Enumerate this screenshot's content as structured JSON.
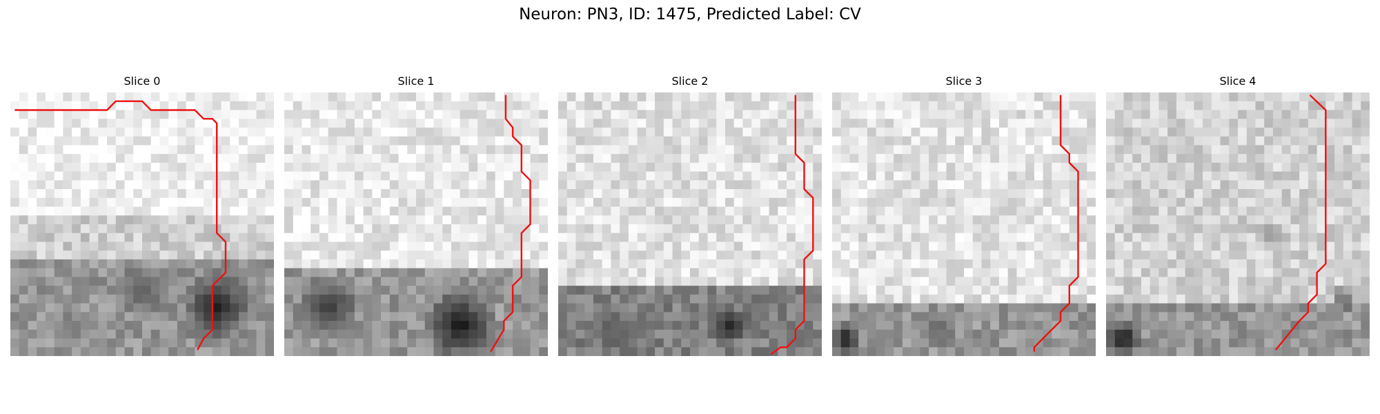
{
  "figure": {
    "title": "Neuron: PN3, ID: 1475, Predicted Label: CV",
    "trace_color": "#ee1111",
    "panels": [
      {
        "title": "Slice 0",
        "bands": [
          {
            "r0": 0,
            "r1": 14,
            "v": 238
          },
          {
            "r0": 14,
            "r1": 19,
            "v": 205
          },
          {
            "r0": 19,
            "r1": 30,
            "v": 150
          }
        ],
        "dark_spots": [
          {
            "r": 24.5,
            "c": 23.5,
            "rad": 4.5,
            "v": 30
          },
          {
            "r": 22.5,
            "c": 15,
            "rad": 3.5,
            "v": 90
          },
          {
            "r": 27,
            "c": 7,
            "rad": 2.5,
            "v": 120
          }
        ],
        "trace": [
          [
            0.5,
            2
          ],
          [
            11,
            2
          ],
          [
            12,
            1
          ],
          [
            15,
            1
          ],
          [
            16,
            2
          ],
          [
            21,
            2
          ],
          [
            22,
            3
          ],
          [
            23,
            3
          ],
          [
            23.5,
            3.5
          ],
          [
            23.5,
            16
          ],
          [
            24.5,
            17
          ],
          [
            24.5,
            20.5
          ],
          [
            23.5,
            21.5
          ],
          [
            23,
            22
          ],
          [
            23,
            27
          ],
          [
            22,
            28
          ],
          [
            21.3,
            29.3
          ]
        ]
      },
      {
        "title": "Slice 1",
        "bands": [
          {
            "r0": 0,
            "r1": 20,
            "v": 232
          },
          {
            "r0": 20,
            "r1": 30,
            "v": 150
          }
        ],
        "dark_spots": [
          {
            "r": 26.5,
            "c": 20,
            "rad": 4.5,
            "v": 15
          },
          {
            "r": 24.5,
            "c": 5,
            "rad": 4,
            "v": 55
          }
        ],
        "trace": [
          [
            25.2,
            0.3
          ],
          [
            25.2,
            3
          ],
          [
            26,
            4
          ],
          [
            26,
            5
          ],
          [
            27,
            6
          ],
          [
            27,
            9
          ],
          [
            28,
            10
          ],
          [
            28,
            15
          ],
          [
            27,
            16
          ],
          [
            27,
            21
          ],
          [
            26,
            22
          ],
          [
            26,
            25
          ],
          [
            25,
            26
          ],
          [
            25,
            27
          ],
          [
            23.5,
            29.5
          ]
        ]
      },
      {
        "title": "Slice 2",
        "bands": [
          {
            "r0": 0,
            "r1": 22,
            "v": 225
          },
          {
            "r0": 22,
            "r1": 30,
            "v": 130
          }
        ],
        "dark_spots": [
          {
            "r": 26.5,
            "c": 19.5,
            "rad": 2.5,
            "v": 40
          },
          {
            "r": 27,
            "c": 6,
            "rad": 3,
            "v": 90
          }
        ],
        "trace": [
          [
            27,
            0.3
          ],
          [
            27,
            7
          ],
          [
            28,
            8
          ],
          [
            28,
            11
          ],
          [
            29,
            12
          ],
          [
            29,
            18
          ],
          [
            28,
            19
          ],
          [
            28,
            26
          ],
          [
            27,
            27
          ],
          [
            27,
            28
          ],
          [
            26,
            29
          ],
          [
            25.3,
            29
          ],
          [
            24.2,
            29.8
          ]
        ]
      },
      {
        "title": "Slice 3",
        "bands": [
          {
            "r0": 0,
            "r1": 24,
            "v": 228
          },
          {
            "r0": 24,
            "r1": 30,
            "v": 150
          }
        ],
        "dark_spots": [
          {
            "r": 28,
            "c": 1.5,
            "rad": 2.2,
            "v": 25
          },
          {
            "r": 27,
            "c": 12,
            "rad": 2.5,
            "v": 100
          }
        ],
        "trace": [
          [
            26,
            0.3
          ],
          [
            26,
            6
          ],
          [
            27,
            7
          ],
          [
            27,
            8
          ],
          [
            28,
            9
          ],
          [
            28,
            21
          ],
          [
            27,
            22
          ],
          [
            27,
            24
          ],
          [
            26,
            25
          ],
          [
            26,
            26
          ],
          [
            25,
            27
          ],
          [
            24,
            28
          ],
          [
            23,
            29
          ],
          [
            23,
            29.5
          ]
        ]
      },
      {
        "title": "Slice 4",
        "bands": [
          {
            "r0": 0,
            "r1": 24,
            "v": 210
          },
          {
            "r0": 24,
            "r1": 30,
            "v": 150
          }
        ],
        "dark_spots": [
          {
            "r": 28,
            "c": 2,
            "rad": 2.5,
            "v": 20
          },
          {
            "r": 23.5,
            "c": 27,
            "rad": 1.8,
            "v": 90
          },
          {
            "r": 16,
            "c": 18.5,
            "rad": 2,
            "v": 150
          }
        ],
        "trace": [
          [
            23.2,
            0.3
          ],
          [
            25,
            2
          ],
          [
            25,
            19.5
          ],
          [
            24,
            20.5
          ],
          [
            24,
            23
          ],
          [
            23,
            24
          ],
          [
            23,
            25
          ],
          [
            22,
            26
          ],
          [
            19.3,
            29.3
          ]
        ]
      }
    ]
  }
}
